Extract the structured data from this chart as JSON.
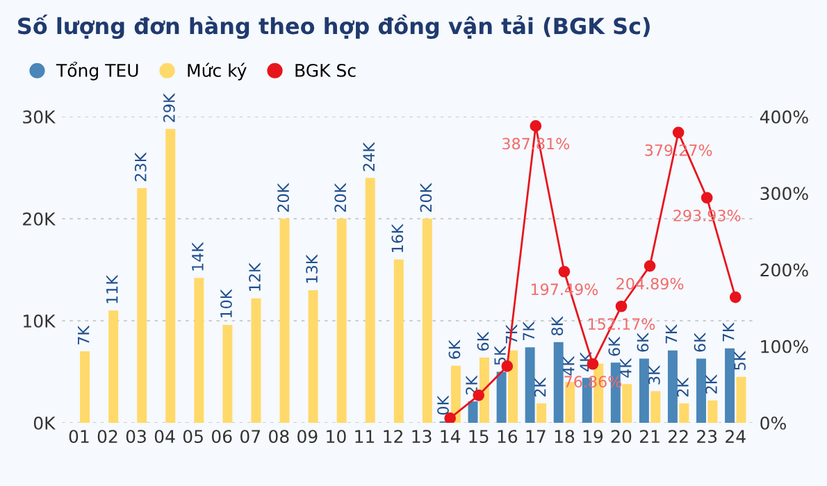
{
  "chart_data": {
    "type": "bar",
    "title": "Số lượng đơn hàng theo hợp đồng vận tải (BGK Sc)",
    "categories": [
      "01",
      "02",
      "03",
      "04",
      "05",
      "06",
      "07",
      "08",
      "09",
      "10",
      "11",
      "12",
      "13",
      "14",
      "15",
      "16",
      "17",
      "18",
      "19",
      "20",
      "21",
      "22",
      "23",
      "24"
    ],
    "series": [
      {
        "name": "Tổng TEU",
        "color": "#4a86b8",
        "values": [
          null,
          null,
          null,
          null,
          null,
          null,
          null,
          null,
          null,
          null,
          null,
          null,
          null,
          140,
          2100,
          5000,
          7400,
          7900,
          4400,
          5900,
          6300,
          7100,
          6300,
          7300
        ],
        "value_labels": [
          null,
          null,
          null,
          null,
          null,
          null,
          null,
          null,
          null,
          null,
          null,
          null,
          null,
          "0K",
          "2K",
          "5K",
          "7K",
          "8K",
          "4K",
          "6K",
          "6K",
          "7K",
          "6K",
          "7K"
        ]
      },
      {
        "name": "Mức ký",
        "color": "#ffd96a",
        "values": [
          7000,
          11000,
          23000,
          28800,
          14200,
          9600,
          12200,
          20000,
          13000,
          20000,
          24000,
          16000,
          20000,
          5600,
          6400,
          7100,
          1900,
          4000,
          5800,
          3800,
          3100,
          1900,
          2200,
          4500
        ],
        "value_labels": [
          "7K",
          "11K",
          "23K",
          "29K",
          "14K",
          "10K",
          "12K",
          "20K",
          "13K",
          "20K",
          "24K",
          "16K",
          "20K",
          "6K",
          "6K",
          "7K",
          "2K",
          "4K",
          null,
          "4K",
          "3K",
          "2K",
          "2K",
          "5K"
        ]
      },
      {
        "name": "BGK Sc",
        "color": "#e8141c",
        "type": "line",
        "axis": "y2",
        "values": [
          null,
          null,
          null,
          null,
          null,
          null,
          null,
          null,
          null,
          null,
          null,
          null,
          null,
          6,
          36,
          74,
          387.81,
          197.49,
          76.86,
          152.17,
          204.89,
          379.27,
          293.93,
          164
        ],
        "value_labels": [
          null,
          null,
          null,
          null,
          null,
          null,
          null,
          null,
          null,
          null,
          null,
          null,
          null,
          null,
          null,
          null,
          "387.81%",
          "197.49%",
          "76.86%",
          "152.17%",
          "204.89%",
          "379.27%",
          "293.93%",
          null
        ]
      }
    ],
    "ylim": [
      0,
      30000
    ],
    "yticks": [
      {
        "value": 0,
        "label": "0K"
      },
      {
        "value": 10000,
        "label": "10K"
      },
      {
        "value": 20000,
        "label": "20K"
      },
      {
        "value": 30000,
        "label": "30K"
      }
    ],
    "y2lim": [
      0,
      400
    ],
    "y2ticks": [
      {
        "value": 0,
        "label": "0%"
      },
      {
        "value": 100,
        "label": "100%"
      },
      {
        "value": 200,
        "label": "200%"
      },
      {
        "value": 300,
        "label": "300%"
      },
      {
        "value": 400,
        "label": "400%"
      }
    ],
    "grid": "y",
    "legend": "top left",
    "marker": "circle",
    "line_style": "solid"
  }
}
